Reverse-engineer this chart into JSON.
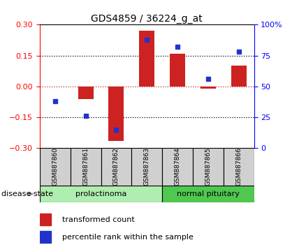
{
  "title": "GDS4859 / 36224_g_at",
  "samples": [
    "GSM887860",
    "GSM887861",
    "GSM887862",
    "GSM887863",
    "GSM887864",
    "GSM887865",
    "GSM887866"
  ],
  "red_bars": [
    0.0,
    -0.06,
    -0.265,
    0.27,
    0.16,
    -0.01,
    0.1
  ],
  "blue_dots_pct": [
    38,
    26,
    15,
    88,
    82,
    56,
    78
  ],
  "ylim_left": [
    -0.3,
    0.3
  ],
  "ylim_right": [
    0,
    100
  ],
  "yticks_left": [
    -0.3,
    -0.15,
    0,
    0.15,
    0.3
  ],
  "yticks_right": [
    0,
    25,
    50,
    75,
    100
  ],
  "groups": [
    {
      "label": "prolactinoma",
      "start": 0,
      "end": 3,
      "light_color": "#c8f0c8",
      "dark_color": "#50c050"
    },
    {
      "label": "normal pituitary",
      "start": 4,
      "end": 6,
      "light_color": "#c8f0c8",
      "dark_color": "#50c050"
    }
  ],
  "disease_state_label": "disease state",
  "legend_red_label": "transformed count",
  "legend_blue_label": "percentile rank within the sample",
  "bar_color": "#cc2222",
  "dot_color": "#2233cc",
  "sample_bg_color": "#d0d0d0",
  "prolactinoma_color": "#b0edb0",
  "normal_pituitary_color": "#50c850"
}
